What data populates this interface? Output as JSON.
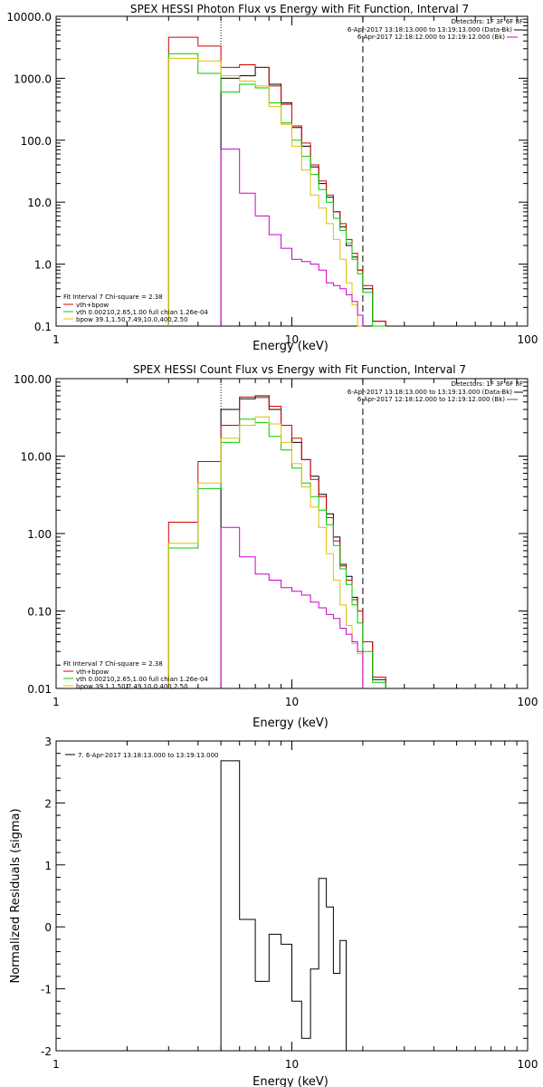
{
  "colors": {
    "data": "#000000",
    "total": "#d40000",
    "vth": "#00cc00",
    "bpow": "#e0c000",
    "background": "#cc00cc",
    "axis": "#000000"
  },
  "chart_data": [
    {
      "type": "line",
      "title": "SPEX HESSI Photon Flux vs Energy with Fit Function, Interval 7",
      "xlabel": "Energy (keV)",
      "ylabel": "",
      "xscale": "log",
      "yscale": "log",
      "xlim": [
        1,
        100
      ],
      "ylim": [
        0.1,
        10000
      ],
      "x_ticks": [
        "1",
        "10",
        "100"
      ],
      "y_ticks": [
        "0.1",
        "1.0",
        "10.0",
        "100.0",
        "1000.0",
        "10000.0"
      ],
      "bin_edges": [
        3,
        4,
        5,
        6,
        7,
        8,
        9,
        10,
        11,
        12,
        13,
        14,
        15,
        16,
        17,
        18,
        19,
        20,
        22,
        25
      ],
      "series": [
        {
          "key": "data",
          "values": [
            null,
            null,
            1000,
            1100,
            1500,
            800,
            400,
            160,
            80,
            37,
            20,
            12,
            7,
            4,
            2,
            1.3,
            0.8,
            0.4,
            0.12
          ]
        },
        {
          "key": "total",
          "values": [
            4600,
            3300,
            1500,
            1650,
            1500,
            750,
            380,
            170,
            90,
            40,
            22,
            13,
            7,
            4.5,
            2.5,
            1.5,
            0.8,
            0.45,
            0.12
          ]
        },
        {
          "key": "vth",
          "values": [
            2500,
            1200,
            600,
            800,
            700,
            400,
            190,
            100,
            55,
            28,
            16,
            10,
            5.5,
            3.5,
            2.2,
            1.2,
            0.7,
            0.35,
            0.1
          ]
        },
        {
          "key": "bpow",
          "values": [
            2100,
            1900,
            1100,
            900,
            750,
            350,
            180,
            80,
            33,
            13,
            8,
            4.5,
            2.5,
            1.2,
            0.5,
            0.22,
            0.1,
            null,
            null
          ]
        },
        {
          "key": "background",
          "values": [
            null,
            null,
            72,
            14,
            6,
            3,
            1.8,
            1.2,
            1.1,
            1,
            0.8,
            0.5,
            0.45,
            0.4,
            0.32,
            0.25,
            0.15,
            null,
            null
          ]
        }
      ],
      "vlines": [
        {
          "x": 5,
          "style": "dotted"
        },
        {
          "x": 20,
          "style": "dashed"
        }
      ],
      "fit_legend": [
        "Fit Interval 7   Chi-square = 2.38",
        "vth+bpow",
        "vth 0.00210,2.65,1.00  full chian 1.26e-04",
        "bpow 39.1,1.50,7.49,10.0,400,2.50"
      ],
      "info": [
        "Detectors: 1F 3F 6F 8F",
        "6-Apr-2017 13:18:13.000 to 13:19:13.000 (Data-Bk)",
        "6-Apr-2017 12:18:12.000 to 12:19:12.000 (Bk)"
      ]
    },
    {
      "type": "line",
      "title": "SPEX HESSI Count Flux vs Energy with Fit Function, Interval 7",
      "xlabel": "Energy (keV)",
      "ylabel": "",
      "xscale": "log",
      "yscale": "log",
      "xlim": [
        1,
        100
      ],
      "ylim": [
        0.01,
        100
      ],
      "x_ticks": [
        "1",
        "10",
        "100"
      ],
      "y_ticks": [
        "0.01",
        "0.10",
        "1.00",
        "10.00",
        "100.00"
      ],
      "bin_edges": [
        3,
        4,
        5,
        6,
        7,
        8,
        9,
        10,
        11,
        12,
        13,
        14,
        15,
        16,
        17,
        18,
        19,
        20,
        22,
        25
      ],
      "series": [
        {
          "key": "data",
          "values": [
            null,
            null,
            40,
            55,
            60,
            40,
            25,
            15,
            9,
            5.5,
            3.2,
            1.8,
            0.9,
            0.4,
            0.28,
            0.15,
            0.1,
            0.04,
            0.013
          ]
        },
        {
          "key": "total",
          "values": [
            1.4,
            8.5,
            25,
            58,
            57,
            44,
            25,
            17,
            9,
            5,
            3,
            1.6,
            0.8,
            0.38,
            0.25,
            0.14,
            0.1,
            0.04,
            0.014
          ]
        },
        {
          "key": "vth",
          "values": [
            0.65,
            3.8,
            15,
            30,
            27,
            18,
            12,
            7,
            4.5,
            3,
            2,
            1.3,
            0.7,
            0.35,
            0.22,
            0.12,
            0.07,
            0.03,
            0.012
          ]
        },
        {
          "key": "bpow",
          "values": [
            0.75,
            4.5,
            17,
            25,
            32,
            26,
            15,
            8,
            4,
            2.2,
            1.2,
            0.55,
            0.25,
            0.12,
            0.065,
            0.038,
            0.028,
            null,
            null
          ]
        },
        {
          "key": "background",
          "values": [
            null,
            null,
            1.2,
            0.5,
            0.3,
            0.25,
            0.2,
            0.18,
            0.16,
            0.13,
            0.11,
            0.09,
            0.08,
            0.06,
            0.05,
            0.04,
            0.03,
            null,
            null
          ]
        }
      ],
      "vlines": [
        {
          "x": 5,
          "style": "dotted"
        },
        {
          "x": 20,
          "style": "dashed"
        }
      ],
      "fit_legend": [
        "Fit Interval 7   Chi-square = 2.38",
        "vth+bpow",
        "vth 0.00210,2.65,1.00  full chian 1.26e-04",
        "bpow 39.1,1.50,7.49,10.0,400,2.50"
      ],
      "info": [
        "Detectors: 1F 3F 6F 8F",
        "6-Apr-2017 13:18:13.000 to 13:19:13.000 (Data-Bk)",
        "6-Apr-2017 12:18:12.000 to 12:19:12.000 (Bk)"
      ]
    },
    {
      "type": "line",
      "title": "",
      "xlabel": "Energy (keV)",
      "ylabel": "Normalized Residuals (sigma)",
      "xscale": "log",
      "yscale": "linear",
      "xlim": [
        1,
        100
      ],
      "ylim": [
        -2,
        3
      ],
      "x_ticks": [
        "1",
        "10",
        "100"
      ],
      "y_ticks": [
        "-2",
        "-1",
        "0",
        "1",
        "2",
        "3"
      ],
      "bin_edges": [
        5,
        6,
        7,
        8,
        9,
        10,
        11,
        12,
        13,
        14,
        15,
        16,
        17,
        18,
        20
      ],
      "series": [
        {
          "key": "data",
          "values": [
            2.68,
            0.12,
            -0.88,
            -0.12,
            -0.28,
            -1.2,
            -1.8,
            -0.68,
            0.78,
            0.32,
            -0.75,
            -0.22,
            -2.05,
            -2.05
          ]
        }
      ],
      "legend": "7.  6-Apr-2017 13:18:13.000 to 13:19:13.000"
    }
  ]
}
